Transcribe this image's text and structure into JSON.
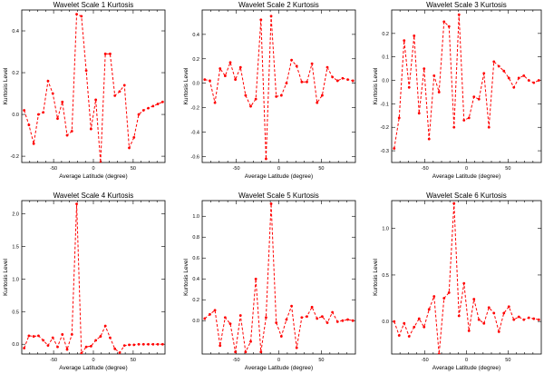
{
  "chart_data": [
    {
      "type": "line",
      "title": "Wavelet Scale 1 Kurtosis",
      "xlabel": "Average Latitude (degree)",
      "ylabel": "Kurtosis Level",
      "xlim": [
        -90,
        90
      ],
      "ylim": [
        -0.23,
        0.5
      ],
      "xticks": [
        -50,
        0,
        50
      ],
      "yticks": [
        -0.2,
        0.0,
        0.2,
        0.4
      ],
      "ytick_labels": [
        "-0.2",
        "0.0",
        "0.2",
        "0.4"
      ],
      "series": [
        {
          "name": "kurtosis",
          "color": "#ff0000",
          "x": [
            -87,
            -81,
            -75,
            -69,
            -63,
            -57,
            -51,
            -45,
            -39,
            -33,
            -27,
            -21,
            -15,
            -9,
            -3,
            3,
            9,
            15,
            21,
            27,
            33,
            39,
            45,
            51,
            57,
            63,
            69,
            75,
            81,
            87
          ],
          "y": [
            0.02,
            -0.05,
            -0.14,
            0.0,
            0.01,
            0.16,
            0.1,
            -0.02,
            0.06,
            -0.1,
            -0.08,
            0.48,
            0.47,
            0.21,
            -0.07,
            0.07,
            -0.23,
            0.29,
            0.29,
            0.09,
            0.11,
            0.14,
            -0.16,
            -0.11,
            -0.0,
            0.02,
            0.03,
            0.04,
            0.05,
            0.06
          ]
        }
      ]
    },
    {
      "type": "line",
      "title": "Wavelet Scale 2 Kurtosis",
      "xlabel": "Average Latitude (degree)",
      "ylabel": "Kurtosis Level",
      "xlim": [
        -90,
        90
      ],
      "ylim": [
        -0.65,
        0.6
      ],
      "xticks": [
        -50,
        0,
        50
      ],
      "yticks": [
        -0.6,
        -0.4,
        -0.2,
        0.0,
        0.2,
        0.4
      ],
      "ytick_labels": [
        "-0.6",
        "-0.4",
        "-0.2",
        "0.0",
        "0.2",
        "0.4"
      ],
      "series": [
        {
          "name": "kurtosis",
          "color": "#ff0000",
          "x": [
            -87,
            -81,
            -75,
            -69,
            -63,
            -57,
            -51,
            -45,
            -39,
            -33,
            -27,
            -21,
            -15,
            -9,
            -3,
            3,
            9,
            15,
            21,
            27,
            33,
            39,
            45,
            51,
            57,
            63,
            69,
            75,
            81,
            87
          ],
          "y": [
            0.03,
            0.02,
            -0.16,
            0.12,
            0.06,
            0.17,
            0.03,
            0.13,
            -0.1,
            -0.19,
            -0.13,
            0.52,
            -0.62,
            0.55,
            -0.11,
            -0.1,
            0.0,
            0.19,
            0.14,
            0.01,
            0.01,
            0.16,
            -0.16,
            -0.1,
            0.13,
            0.05,
            0.02,
            0.04,
            0.03,
            0.02
          ]
        }
      ]
    },
    {
      "type": "line",
      "title": "Wavelet Scale 3 Kurtosis",
      "xlabel": "Average Latitude (degree)",
      "ylabel": "Kurtosis Level",
      "xlim": [
        -90,
        90
      ],
      "ylim": [
        -0.35,
        0.3
      ],
      "xticks": [
        -50,
        0,
        50
      ],
      "yticks": [
        -0.3,
        -0.2,
        -0.1,
        0.0,
        0.1,
        0.2
      ],
      "ytick_labels": [
        "-0.3",
        "-0.2",
        "-0.1",
        "0.0",
        "0.1",
        "0.2"
      ],
      "series": [
        {
          "name": "kurtosis",
          "color": "#ff0000",
          "x": [
            -87,
            -81,
            -75,
            -69,
            -63,
            -57,
            -51,
            -45,
            -39,
            -33,
            -27,
            -21,
            -15,
            -9,
            -3,
            3,
            9,
            15,
            21,
            27,
            33,
            39,
            45,
            51,
            57,
            63,
            69,
            75,
            81,
            87
          ],
          "y": [
            -0.29,
            -0.16,
            0.17,
            -0.03,
            0.19,
            -0.14,
            0.05,
            -0.25,
            0.02,
            -0.05,
            0.25,
            0.23,
            -0.2,
            0.28,
            -0.17,
            -0.16,
            -0.07,
            -0.08,
            0.03,
            -0.2,
            0.08,
            0.06,
            0.04,
            0.01,
            -0.03,
            0.01,
            0.02,
            0.0,
            -0.01,
            0.0
          ]
        }
      ]
    },
    {
      "type": "line",
      "title": "Wavelet Scale 4 Kurtosis",
      "xlabel": "Average Latitude (degree)",
      "ylabel": "Kurtosis Level",
      "xlim": [
        -90,
        90
      ],
      "ylim": [
        -0.15,
        2.2
      ],
      "xticks": [
        -50,
        0,
        50
      ],
      "yticks": [
        0.0,
        0.5,
        1.0,
        1.5,
        2.0
      ],
      "ytick_labels": [
        "0.0",
        "0.5",
        "1.0",
        "1.5",
        "2.0"
      ],
      "series": [
        {
          "name": "kurtosis",
          "color": "#ff0000",
          "x": [
            -87,
            -81,
            -75,
            -69,
            -63,
            -57,
            -51,
            -45,
            -39,
            -33,
            -27,
            -21,
            -15,
            -9,
            -3,
            3,
            9,
            15,
            21,
            27,
            33,
            39,
            45,
            51,
            57,
            63,
            69,
            75,
            81,
            87
          ],
          "y": [
            -0.06,
            0.13,
            0.12,
            0.13,
            0.06,
            -0.02,
            0.1,
            -0.04,
            0.15,
            -0.08,
            0.15,
            2.15,
            -0.14,
            -0.04,
            -0.03,
            0.06,
            0.12,
            0.28,
            0.1,
            -0.07,
            -0.13,
            -0.02,
            -0.01,
            -0.01,
            0.0,
            0.0,
            0.0,
            0.0,
            0.0,
            0.0
          ]
        }
      ]
    },
    {
      "type": "line",
      "title": "Wavelet Scale 5 Kurtosis",
      "xlabel": "Average Latitude (degree)",
      "ylabel": "Kurtosis Level",
      "xlim": [
        -90,
        90
      ],
      "ylim": [
        -0.32,
        1.15
      ],
      "xticks": [
        -50,
        0,
        50
      ],
      "yticks": [
        0.0,
        0.2,
        0.4,
        0.6,
        0.8,
        1.0
      ],
      "ytick_labels": [
        "0.0",
        "0.2",
        "0.4",
        "0.6",
        "0.8",
        "1.0"
      ],
      "series": [
        {
          "name": "kurtosis",
          "color": "#ff0000",
          "x": [
            -87,
            -81,
            -75,
            -69,
            -63,
            -57,
            -51,
            -45,
            -39,
            -33,
            -27,
            -21,
            -15,
            -9,
            -3,
            3,
            9,
            15,
            21,
            27,
            33,
            39,
            45,
            51,
            57,
            63,
            69,
            75,
            81,
            87
          ],
          "y": [
            0.02,
            0.06,
            0.1,
            -0.24,
            0.03,
            -0.03,
            -0.3,
            0.05,
            -0.3,
            -0.2,
            0.4,
            -0.3,
            0.03,
            1.12,
            -0.02,
            -0.15,
            0.01,
            0.14,
            -0.26,
            0.03,
            0.04,
            0.13,
            0.02,
            0.04,
            -0.02,
            0.08,
            -0.01,
            0.0,
            0.01,
            0.0
          ]
        }
      ]
    },
    {
      "type": "line",
      "title": "Wavelet Scale 6 Kurtosis",
      "xlabel": "Average Latitude (degree)",
      "ylabel": "Kurtosis Level",
      "xlim": [
        -90,
        90
      ],
      "ylim": [
        -0.35,
        1.3
      ],
      "xticks": [
        -50,
        0,
        50
      ],
      "yticks": [
        0.0,
        0.5,
        1.0
      ],
      "ytick_labels": [
        "0.0",
        "0.5",
        "1.0"
      ],
      "series": [
        {
          "name": "kurtosis",
          "color": "#ff0000",
          "x": [
            -87,
            -81,
            -75,
            -69,
            -63,
            -57,
            -51,
            -45,
            -39,
            -33,
            -27,
            -21,
            -15,
            -9,
            -3,
            3,
            9,
            15,
            21,
            27,
            33,
            39,
            45,
            51,
            57,
            63,
            69,
            75,
            81,
            87
          ],
          "y": [
            0.0,
            -0.15,
            -0.02,
            -0.16,
            -0.06,
            0.03,
            -0.06,
            0.13,
            0.27,
            -0.35,
            0.25,
            0.31,
            1.27,
            0.06,
            0.41,
            -0.1,
            0.24,
            0.02,
            -0.02,
            0.15,
            0.09,
            -0.11,
            0.09,
            0.16,
            0.02,
            0.05,
            0.02,
            0.04,
            0.03,
            0.02
          ]
        }
      ]
    }
  ]
}
